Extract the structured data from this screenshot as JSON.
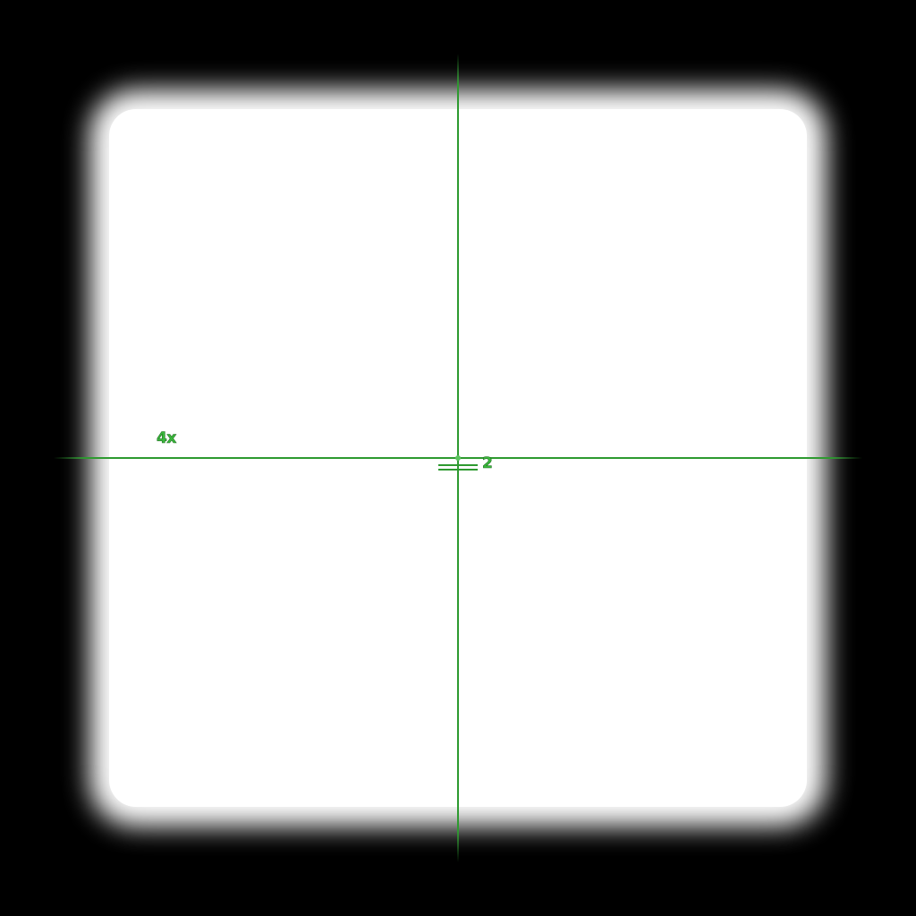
{
  "scope": {
    "zoom_label": "4x",
    "range_label": "2",
    "reticle_color": "#2e9a30",
    "label_color": "#3ab83c"
  }
}
